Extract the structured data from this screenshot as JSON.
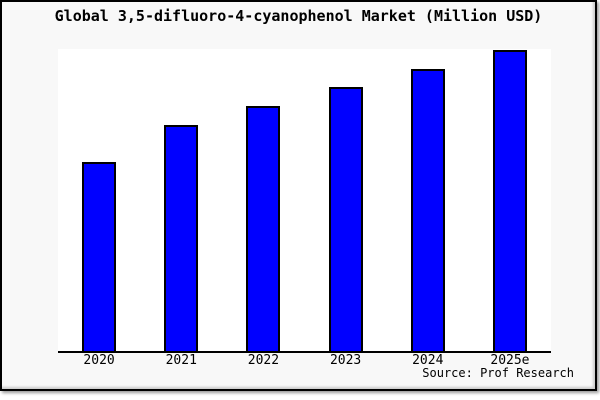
{
  "title": "Global 3,5-difluoro-4-cyanophenol Market (Million USD)",
  "source": "Source: Prof Research",
  "colors": {
    "figure_bg": "#f8f8f8",
    "plot_bg": "#ffffff",
    "bar_fill": "#0000ff",
    "bar_border": "#000000",
    "axis": "#000000",
    "text": "#000000",
    "frame_border": "#000000"
  },
  "chart_data": {
    "type": "bar",
    "title": "Global 3,5-difluoro-4-cyanophenol Market (Million USD)",
    "categories": [
      "2020",
      "2021",
      "2022",
      "2023",
      "2024",
      "2025e"
    ],
    "values": [
      62.9,
      75.2,
      81.4,
      87.7,
      93.7,
      100.0
    ],
    "ylim": [
      0,
      100.3
    ],
    "xlabel": "",
    "ylabel": "",
    "grid": false,
    "legend": false,
    "y_axis_ticks": "none",
    "annotation": "Source: Prof Research",
    "note": "Y-axis has no tick labels or gridlines; values are relative bar heights normalized to 2025e = 100"
  }
}
